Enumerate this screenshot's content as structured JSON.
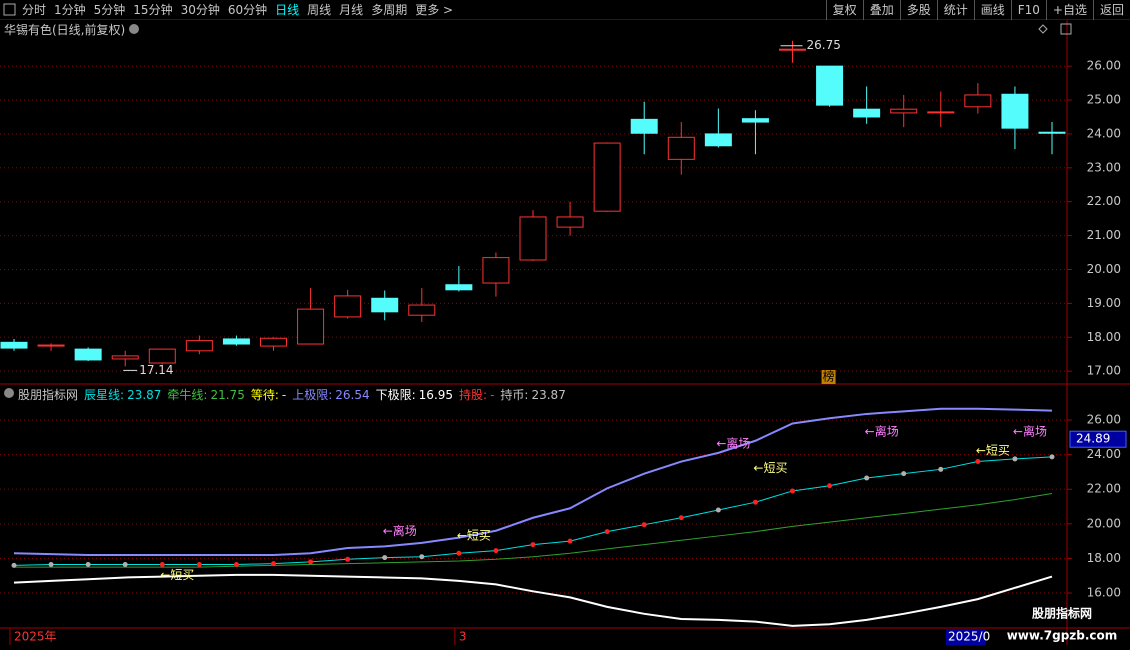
{
  "toolbar": {
    "periods": [
      "分时",
      "1分钟",
      "5分钟",
      "15分钟",
      "30分钟",
      "60分钟",
      "日线",
      "周线",
      "月线",
      "多周期",
      "更多 >"
    ],
    "active_period": 6,
    "buttons": [
      "复权",
      "叠加",
      "多股",
      "统计",
      "画线",
      "F10",
      "+自选",
      "返回"
    ]
  },
  "chart_data": [
    {
      "type": "candlestick",
      "title": "华锡有色(日线,前复权)",
      "up_color": "#ff3232",
      "down_color": "#54fcfc",
      "open": [
        17.85,
        17.74,
        17.65,
        17.36,
        17.24,
        17.6,
        17.95,
        17.74,
        17.8,
        18.6,
        19.15,
        18.65,
        19.55,
        19.6,
        20.28,
        21.25,
        21.72,
        24.43,
        23.25,
        24.0,
        24.45,
        26.5,
        26.0,
        24.73,
        24.62,
        24.62,
        24.8,
        25.17,
        24.05
      ],
      "high": [
        17.95,
        17.82,
        17.7,
        17.6,
        17.66,
        18.05,
        18.05,
        18.0,
        19.45,
        19.4,
        19.38,
        19.45,
        20.1,
        20.5,
        21.75,
        22.0,
        23.75,
        24.95,
        24.35,
        24.75,
        24.7,
        26.75,
        26.0,
        25.4,
        25.15,
        25.25,
        25.5,
        25.4,
        24.35
      ],
      "low": [
        17.6,
        17.6,
        17.3,
        17.14,
        17.2,
        17.5,
        17.75,
        17.6,
        17.8,
        18.55,
        18.5,
        18.45,
        19.35,
        19.2,
        20.25,
        21.0,
        21.7,
        23.4,
        22.8,
        23.6,
        23.4,
        26.1,
        24.8,
        24.3,
        24.2,
        24.2,
        24.6,
        23.55,
        23.4
      ],
      "close": [
        17.68,
        17.77,
        17.33,
        17.45,
        17.65,
        17.9,
        17.8,
        17.97,
        18.83,
        19.22,
        18.75,
        18.95,
        19.4,
        20.35,
        21.55,
        21.55,
        23.73,
        24.02,
        23.9,
        23.65,
        24.35,
        26.5,
        24.85,
        24.5,
        24.73,
        24.65,
        25.15,
        24.17,
        24.02
      ],
      "ylim": [
        16.65,
        26.86
      ],
      "yticks": [
        {
          "value": 17,
          "label": "17.00"
        },
        {
          "value": 18,
          "label": "18.00"
        },
        {
          "value": 19,
          "label": "19.00"
        },
        {
          "value": 20,
          "label": "20.00"
        },
        {
          "value": 21,
          "label": "21.00"
        },
        {
          "value": 22,
          "label": "22.00"
        },
        {
          "value": 23,
          "label": "23.00"
        },
        {
          "value": 24,
          "label": "24.00"
        },
        {
          "value": 25,
          "label": "25.00"
        },
        {
          "value": 26,
          "label": "26.00"
        }
      ],
      "grid": true,
      "badge": "榜"
    },
    {
      "type": "line",
      "title": "股朋指标网",
      "legend": [
        {
          "label": "辰星线:",
          "value": 23.87,
          "color": "#00e0e0"
        },
        {
          "label": "牵牛线:",
          "value": 21.75,
          "color": "#40c040"
        },
        {
          "label": "等待:",
          "value": "-",
          "color": "#ffff00"
        },
        {
          "label": "上极限:",
          "value": 26.54,
          "color": "#8888ff"
        },
        {
          "label": "下极限:",
          "value": 16.95,
          "color": "#ffffff"
        },
        {
          "label": "持股:",
          "value": "-",
          "color": "#ff3232"
        },
        {
          "label": "持币:",
          "value": 23.87,
          "color": "#c0c0c0"
        }
      ],
      "series": [
        {
          "color": "#8888ff",
          "values": [
            18.3,
            18.25,
            18.2,
            18.2,
            18.2,
            18.2,
            18.2,
            18.2,
            18.3,
            18.6,
            18.7,
            18.9,
            19.2,
            19.6,
            20.35,
            20.9,
            22.05,
            22.9,
            23.6,
            24.1,
            24.8,
            25.8,
            26.1,
            26.35,
            26.5,
            26.65,
            26.65,
            26.6,
            26.54
          ]
        },
        {
          "color": "#ffffff",
          "values": [
            16.6,
            16.7,
            16.8,
            16.9,
            16.95,
            17.0,
            17.05,
            17.05,
            17.0,
            16.95,
            16.9,
            16.85,
            16.7,
            16.5,
            16.1,
            15.75,
            15.2,
            14.8,
            14.5,
            14.45,
            14.35,
            14.1,
            14.2,
            14.45,
            14.8,
            15.2,
            15.65,
            16.3,
            16.95
          ]
        },
        {
          "color": "#30a030",
          "values": [
            17.5,
            17.5,
            17.5,
            17.5,
            17.5,
            17.5,
            17.55,
            17.6,
            17.65,
            17.7,
            17.75,
            17.8,
            17.85,
            17.95,
            18.1,
            18.3,
            18.55,
            18.8,
            19.05,
            19.3,
            19.55,
            19.85,
            20.1,
            20.35,
            20.6,
            20.85,
            21.1,
            21.4,
            21.75
          ]
        },
        {
          "color": "#00e0e0",
          "values": [
            17.6,
            17.65,
            17.65,
            17.65,
            17.65,
            17.65,
            17.65,
            17.7,
            17.8,
            17.95,
            18.05,
            18.1,
            18.3,
            18.45,
            18.8,
            19.0,
            19.55,
            19.95,
            20.35,
            20.8,
            21.25,
            21.9,
            22.2,
            22.65,
            22.9,
            23.15,
            23.6,
            23.75,
            23.87
          ],
          "marker_colors": [
            "#b0b0b0",
            "#b0b0b0",
            "#b0b0b0",
            "#b0b0b0",
            "#ff2020",
            "#ff2020",
            "#ff2020",
            "#ff2020",
            "#ff2020",
            "#ff2020",
            "#b0b0b0",
            "#b0b0b0",
            "#ff2020",
            "#ff2020",
            "#ff2020",
            "#ff2020",
            "#ff2020",
            "#ff2020",
            "#ff2020",
            "#b0b0b0",
            "#ff2020",
            "#ff2020",
            "#ff2020",
            "#b0b0b0",
            "#b0b0b0",
            "#b0b0b0",
            "#ff2020",
            "#b0b0b0",
            "#b0b0b0"
          ]
        }
      ],
      "annotations": [
        {
          "text": "←离场",
          "color": "#ff80ff"
        },
        {
          "text": "←短买",
          "color": "#ffff80"
        },
        {
          "text": "←离场",
          "color": "#ff80ff"
        },
        {
          "text": "←离场",
          "color": "#ff80ff"
        },
        {
          "text": "←离场",
          "color": "#ff80ff"
        },
        {
          "text": "←短买",
          "color": "#ffff80"
        },
        {
          "text": "←短买",
          "color": "#ffff80"
        },
        {
          "text": "←短买",
          "color": "#ffff80"
        }
      ],
      "cursor_value": 24.89,
      "ylim": [
        13.98,
        27.04
      ],
      "yticks": [
        {
          "value": 16,
          "label": "16.00"
        },
        {
          "value": 18,
          "label": "18.00"
        },
        {
          "value": 20,
          "label": "20.00"
        },
        {
          "value": 22,
          "label": "22.00"
        },
        {
          "value": 24,
          "label": "24.00"
        },
        {
          "value": 26,
          "label": "26.00"
        }
      ],
      "grid": true
    }
  ],
  "x_axis": {
    "labels": [
      "2025年",
      "3"
    ],
    "cursor_label": "2025/0"
  },
  "watermark": {
    "title": "股朋指标网",
    "url": "www.7gpzb.com"
  }
}
